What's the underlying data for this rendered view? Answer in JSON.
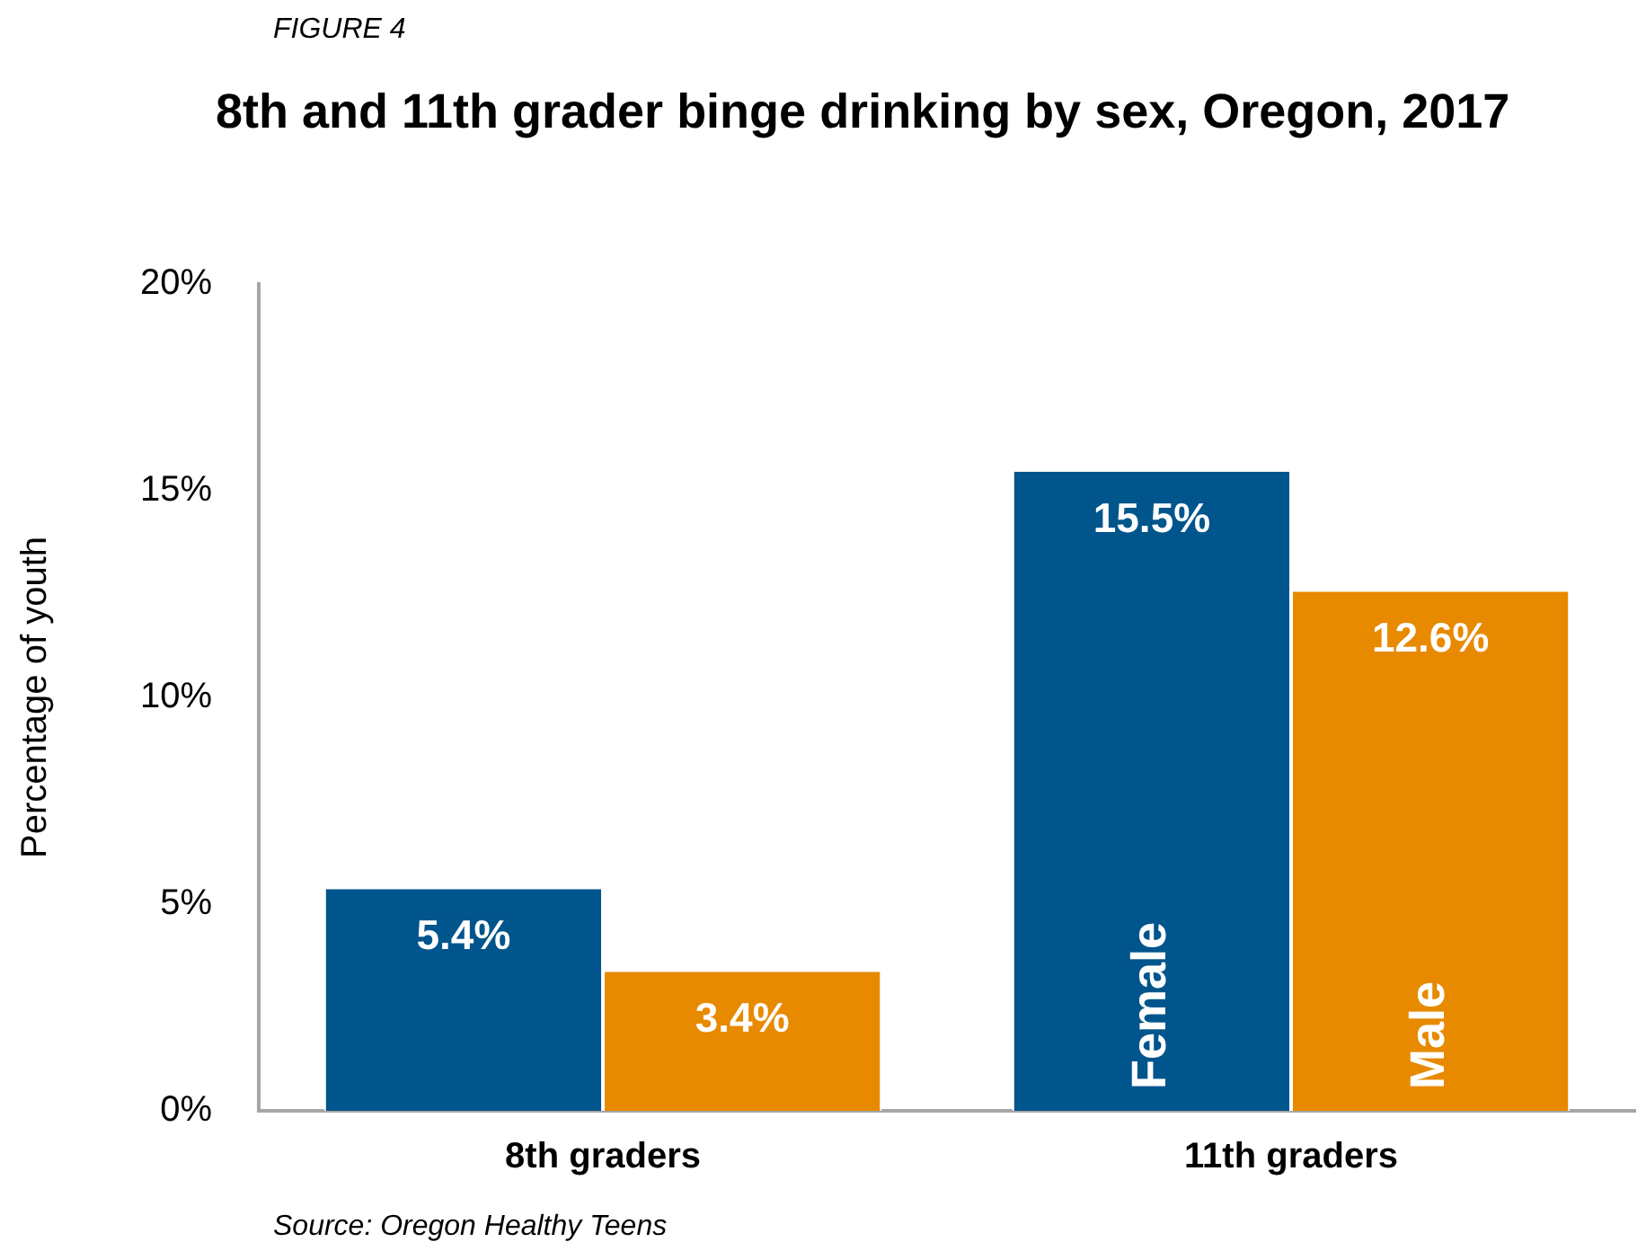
{
  "chart_data": {
    "type": "bar",
    "subtitle": "FIGURE 4",
    "title": "8th and 11th grader binge drinking by sex, Oregon, 2017",
    "ylabel": "Percentage of youth",
    "categories": [
      "8th graders",
      "11th graders"
    ],
    "series": [
      {
        "name": "Female",
        "color": "#00558c",
        "values": [
          5.4,
          15.5
        ],
        "value_labels": [
          "5.4%",
          "15.5%"
        ]
      },
      {
        "name": "Male",
        "color": "#e88a00",
        "values": [
          3.4,
          12.6
        ],
        "value_labels": [
          "3.4%",
          "12.6%"
        ]
      }
    ],
    "ylim": [
      0,
      20
    ],
    "yticks": [
      {
        "value": 0,
        "label": "0%"
      },
      {
        "value": 5,
        "label": "5%"
      },
      {
        "value": 10,
        "label": "10%"
      },
      {
        "value": 15,
        "label": "15%"
      },
      {
        "value": 20,
        "label": "20%"
      }
    ],
    "grid": false,
    "legend": false,
    "annotations": [
      "Source: Oregon Healthy Teens"
    ]
  }
}
